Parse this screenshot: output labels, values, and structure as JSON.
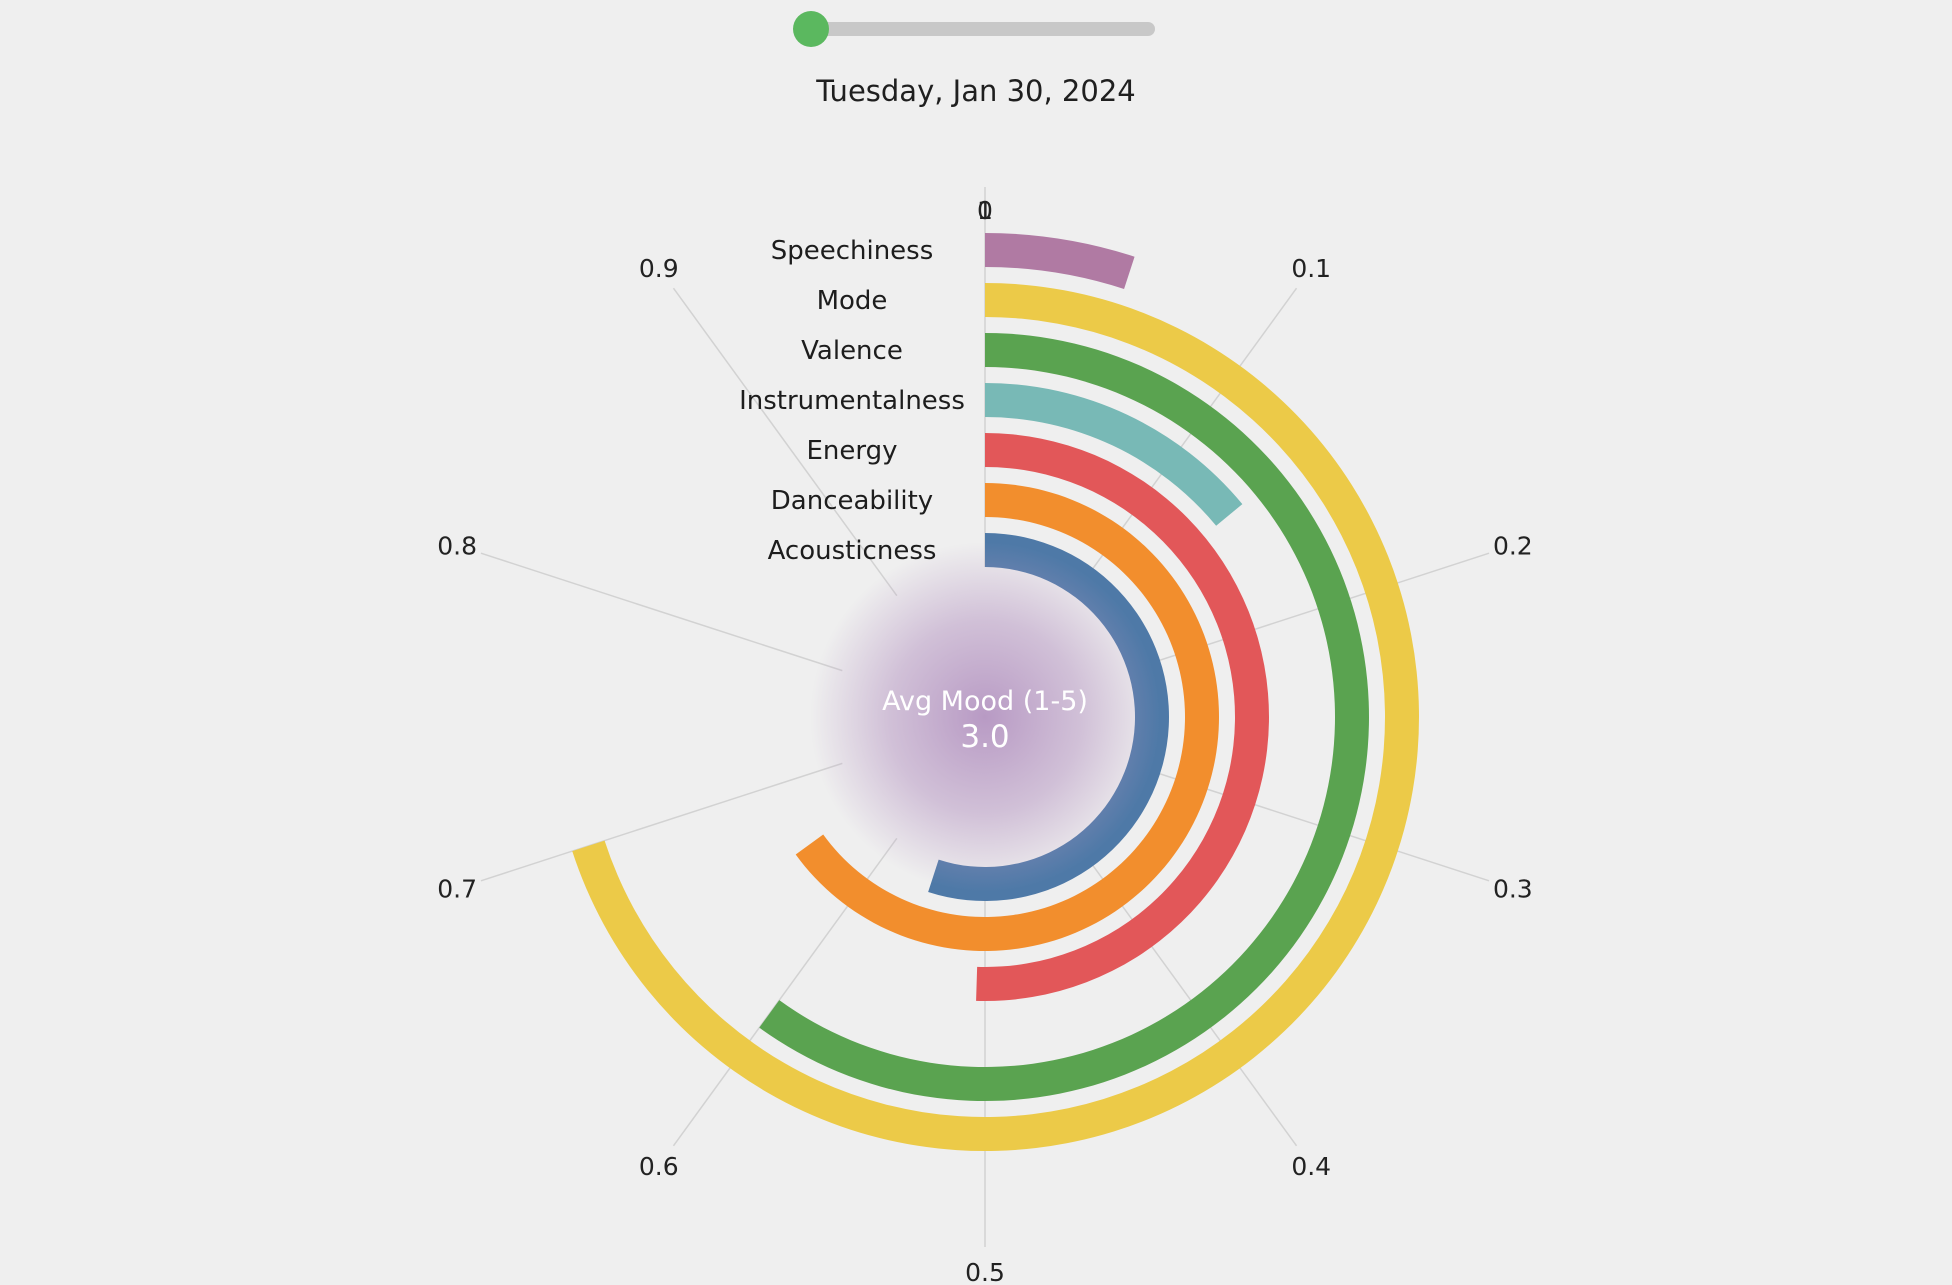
{
  "slider": {
    "value_fraction": 0.0
  },
  "date": "Tuesday, Jan 30, 2024",
  "center": {
    "title": "Avg Mood (1-5)",
    "value": "3.0",
    "glow_color": "#b89ac4"
  },
  "chart_data": {
    "type": "radial-bar",
    "title": "",
    "range": [
      0,
      1
    ],
    "ticks": [
      "0",
      "0.1",
      "0.2",
      "0.3",
      "0.4",
      "0.5",
      "0.6",
      "0.7",
      "0.8",
      "0.9"
    ],
    "tick_values": [
      0,
      0.1,
      0.2,
      0.3,
      0.4,
      0.5,
      0.6,
      0.7,
      0.8,
      0.9
    ],
    "zero_label_overlap": "1",
    "series": [
      {
        "name": "Speechiness",
        "value": 0.05,
        "color": "#b07aa3"
      },
      {
        "name": "Mode",
        "value": 0.7,
        "color": "#ecca48"
      },
      {
        "name": "Valence",
        "value": 0.6,
        "color": "#5aa350"
      },
      {
        "name": "Instrumentalness",
        "value": 0.14,
        "color": "#78b9b6"
      },
      {
        "name": "Energy",
        "value": 0.505,
        "color": "#e25759"
      },
      {
        "name": "Danceability",
        "value": 0.65,
        "color": "#f28e2d"
      },
      {
        "name": "Acousticness",
        "value": 0.55,
        "color": "#4e79a7"
      }
    ]
  }
}
